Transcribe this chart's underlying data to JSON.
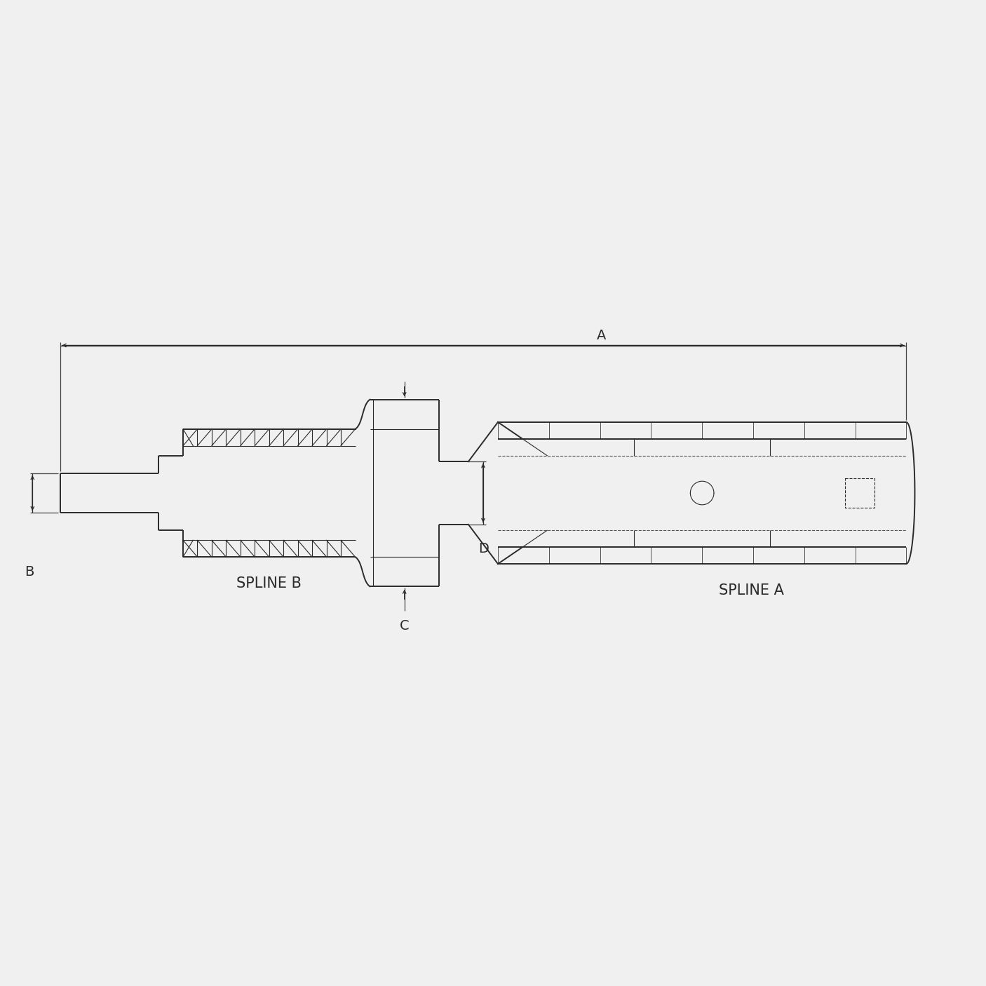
{
  "bg_color": "#f0f0f0",
  "line_color": "#2a2a2a",
  "dashed_color": "#555555",
  "label_A": "A",
  "label_B": "B",
  "label_C": "C",
  "label_D": "D",
  "label_spline_a": "SPLINE A",
  "label_spline_b": "SPLINE B",
  "font_size_label": 14,
  "lw_main": 1.4,
  "lw_thin": 0.8,
  "lw_dim": 0.9
}
